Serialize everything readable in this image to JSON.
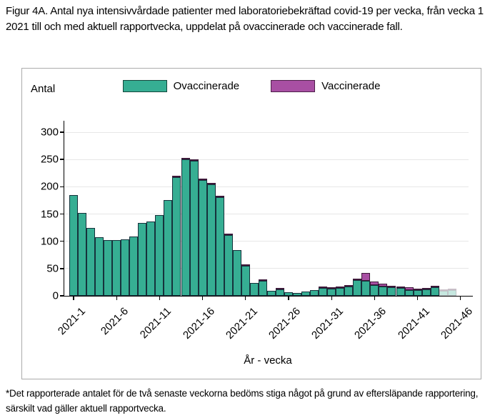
{
  "figure": {
    "title": "Figur 4A. Antal nya intensivvårdade patienter med laboratoriebekräftad covid-19 per vecka, från vecka 1 2021 till och med aktuell rapportvecka, uppdelat på ovaccinerade och vaccinerade fall.",
    "footnote": "*Det rapporterade antalet för de två senaste veckorna bedöms stiga något på grund av eftersläpande rapportering, särskilt vad gäller aktuell rapportvecka."
  },
  "colors": {
    "unvaccinated": "#36AE93",
    "vaccinated": "#A84FA3",
    "axis": "#000000",
    "gridline": "#e7e7e7"
  },
  "chart_data": {
    "type": "bar",
    "stacked": true,
    "ylabel": "Antal",
    "xlabel": "År - vecka",
    "ylim": [
      0,
      321
    ],
    "yticks": [
      0,
      50,
      100,
      150,
      200,
      250,
      300
    ],
    "grid": true,
    "legend_position": "top-center",
    "x_unit": "year-week",
    "weeks": [
      1,
      2,
      3,
      4,
      5,
      6,
      7,
      8,
      9,
      10,
      11,
      12,
      13,
      14,
      15,
      16,
      17,
      18,
      19,
      20,
      21,
      22,
      23,
      24,
      25,
      26,
      27,
      28,
      29,
      30,
      31,
      32,
      33,
      34,
      35,
      36,
      37,
      38,
      39,
      40,
      41,
      42,
      43,
      44,
      45
    ],
    "xtick_weeks": [
      1,
      6,
      11,
      16,
      21,
      26,
      31,
      36,
      41,
      46
    ],
    "xtick_labels": [
      "2021-1",
      "2021-6",
      "2021-11",
      "2021-16",
      "2021-21",
      "2021-26",
      "2021-31",
      "2021-36",
      "2021-41",
      "2021-46"
    ],
    "series": [
      {
        "name": "Ovaccinerade",
        "color": "#36AE93",
        "values": [
          185,
          152,
          125,
          107,
          102,
          102,
          104,
          109,
          133,
          136,
          148,
          176,
          218,
          250,
          247,
          212,
          204,
          181,
          112,
          84,
          55,
          24,
          27,
          9,
          12,
          6,
          5,
          8,
          10,
          14,
          13,
          15,
          17,
          29,
          28,
          19,
          17,
          16,
          14,
          10,
          10,
          12,
          16,
          9,
          11
        ]
      },
      {
        "name": "Vaccinerade",
        "color": "#A84FA3",
        "values": [
          0,
          0,
          0,
          0,
          0,
          0,
          0,
          0,
          0,
          0,
          0,
          0,
          2,
          3,
          2,
          1,
          3,
          1,
          3,
          0,
          1,
          0,
          2,
          0,
          1,
          0,
          0,
          0,
          0,
          1,
          1,
          1,
          2,
          2,
          15,
          6,
          5,
          3,
          3,
          5,
          3,
          2,
          1,
          3,
          1
        ]
      }
    ],
    "faded_weeks": [
      44,
      45
    ],
    "faded_note": "last two weeks drawn semi-transparent (provisional data)"
  }
}
